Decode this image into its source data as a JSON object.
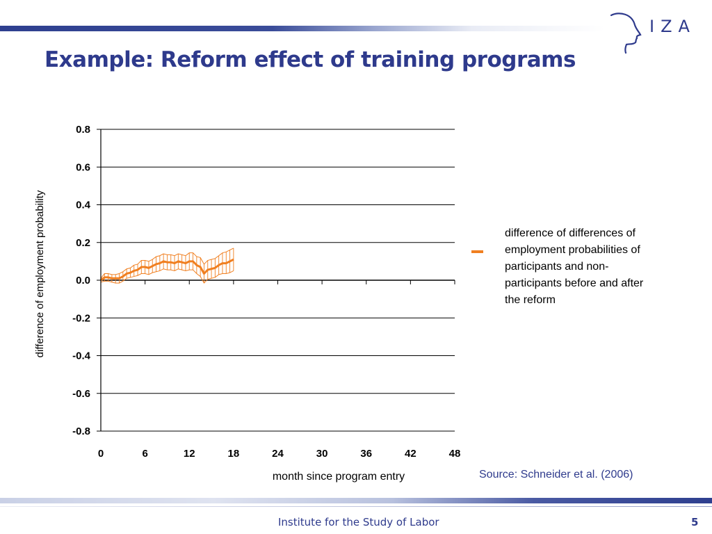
{
  "slide": {
    "title": "Example: Reform effect of training programs",
    "logo_text": "IZA",
    "footer_text": "Institute for the Study of Labor",
    "page_number": "5",
    "source": "Source: Schneider et al. (2006)"
  },
  "colors": {
    "brand_blue": "#2e3a8c",
    "series_orange": "#f07f20"
  },
  "chart_data": {
    "type": "line",
    "title": "",
    "xlabel": "month since program entry",
    "ylabel": "difference of employment probability",
    "xlim": [
      0,
      48
    ],
    "ylim": [
      -0.8,
      0.8
    ],
    "x_ticks": [
      0,
      6,
      12,
      18,
      24,
      30,
      36,
      42,
      48
    ],
    "y_ticks": [
      0.8,
      0.6,
      0.4,
      0.2,
      0.0,
      -0.2,
      -0.4,
      -0.6,
      -0.8
    ],
    "y_tick_labels": [
      "0.8",
      "0.6",
      "0.4",
      "0.2",
      "0.0",
      "-0.2",
      "-0.4",
      "-0.6",
      "-0.8"
    ],
    "grid": "horizontal",
    "legend_position": "right",
    "series": [
      {
        "name": "difference of differences of employment probabilities of participants and non-participants before and after the reform",
        "x": [
          0,
          0.5,
          1,
          1.5,
          2,
          2.5,
          3,
          3.5,
          4,
          4.5,
          5,
          5.5,
          6,
          6.5,
          7,
          7.5,
          8,
          8.5,
          9,
          9.5,
          10,
          10.5,
          11,
          11.5,
          12,
          12.5,
          13,
          13.5,
          14,
          14.5,
          15,
          15.5,
          16,
          16.5,
          17,
          17.5,
          18
        ],
        "y": [
          0.0,
          0.015,
          0.015,
          0.01,
          0.01,
          0.01,
          0.02,
          0.035,
          0.04,
          0.05,
          0.055,
          0.07,
          0.07,
          0.065,
          0.075,
          0.085,
          0.09,
          0.1,
          0.095,
          0.095,
          0.09,
          0.1,
          0.095,
          0.09,
          0.1,
          0.1,
          0.08,
          0.07,
          0.035,
          0.055,
          0.06,
          0.065,
          0.08,
          0.09,
          0.09,
          0.1,
          0.11
        ],
        "lower": [
          -0.01,
          -0.005,
          -0.005,
          -0.01,
          -0.015,
          -0.015,
          -0.005,
          0.01,
          0.015,
          0.02,
          0.025,
          0.035,
          0.035,
          0.03,
          0.04,
          0.045,
          0.05,
          0.06,
          0.055,
          0.055,
          0.05,
          0.06,
          0.055,
          0.05,
          0.055,
          0.055,
          0.035,
          0.02,
          -0.015,
          0.005,
          0.01,
          0.015,
          0.03,
          0.035,
          0.035,
          0.04,
          0.05
        ],
        "upper": [
          0.01,
          0.035,
          0.035,
          0.03,
          0.03,
          0.035,
          0.045,
          0.06,
          0.065,
          0.08,
          0.085,
          0.105,
          0.105,
          0.1,
          0.11,
          0.125,
          0.13,
          0.14,
          0.135,
          0.135,
          0.13,
          0.14,
          0.135,
          0.13,
          0.145,
          0.145,
          0.125,
          0.12,
          0.085,
          0.105,
          0.11,
          0.115,
          0.13,
          0.145,
          0.15,
          0.16,
          0.17
        ],
        "color": "#f07f20"
      }
    ]
  }
}
